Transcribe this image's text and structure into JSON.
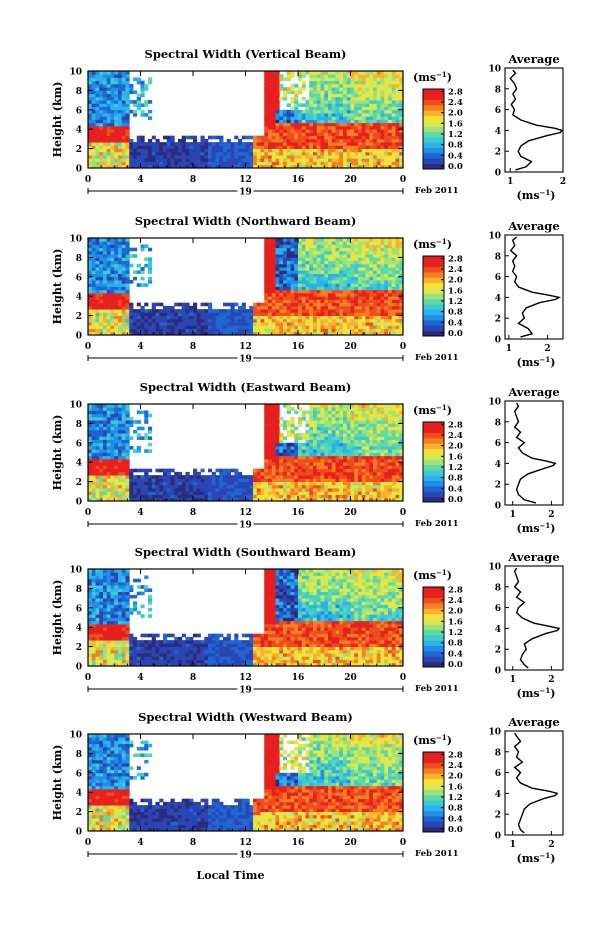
{
  "figure": {
    "xlabel": "Local Time",
    "ylabel": "Height (km)",
    "unit": "(ms",
    "unit_exp": "−1",
    "unit_close": ")",
    "date_day": "19",
    "date_month": "Feb 2011",
    "average_title": "Average"
  },
  "colors": {
    "scale": [
      "#2c2c7c",
      "#2b46b4",
      "#1e66d2",
      "#1f8ee6",
      "#2ab3ea",
      "#3ccbd0",
      "#5fd8a8",
      "#9ee27a",
      "#d6ea4e",
      "#f6e03a",
      "#f9b22c",
      "#f48022",
      "#ec4e1e",
      "#e8201e",
      "#e81e1e"
    ]
  },
  "chart_data": [
    {
      "type": "heatmap",
      "title": "Spectral Width (Vertical Beam)",
      "x": [
        0,
        4,
        8,
        12,
        16,
        20,
        0
      ],
      "x_ticks": [
        "0",
        "4",
        "8",
        "12",
        "16",
        "20",
        "0"
      ],
      "y_ticks": [
        "0",
        "2",
        "4",
        "6",
        "8",
        "10"
      ],
      "ylim": [
        0,
        10
      ],
      "colorbar_ticks": [
        "0.0",
        "0.4",
        "0.8",
        "1.2",
        "1.6",
        "2.0",
        "2.4",
        "2.8"
      ],
      "colorbar_range": [
        0,
        3.0
      ],
      "average_profile": {
        "xlim": [
          0.9,
          2.0
        ],
        "x_ticks": [
          "1",
          "2"
        ],
        "height": [
          0.2,
          0.5,
          1.0,
          1.5,
          2.0,
          2.5,
          3.0,
          3.5,
          3.8,
          4.0,
          4.2,
          4.5,
          5.0,
          5.5,
          6.0,
          6.5,
          7.0,
          7.5,
          8.0,
          8.5,
          9.0,
          9.5,
          9.8
        ],
        "value": [
          1.1,
          1.3,
          1.4,
          1.2,
          1.15,
          1.2,
          1.35,
          1.7,
          1.95,
          1.98,
          1.85,
          1.5,
          1.2,
          1.05,
          1.08,
          1.02,
          1.1,
          1.05,
          1.12,
          1.08,
          1.0,
          1.1,
          1.05
        ]
      }
    },
    {
      "type": "heatmap",
      "title": "Spectral Width (Northward Beam)",
      "x": [
        0,
        4,
        8,
        12,
        16,
        20,
        0
      ],
      "x_ticks": [
        "0",
        "4",
        "8",
        "12",
        "16",
        "20",
        "0"
      ],
      "y_ticks": [
        "0",
        "2",
        "4",
        "6",
        "8",
        "10"
      ],
      "ylim": [
        0,
        10
      ],
      "colorbar_ticks": [
        "0.0",
        "0.4",
        "0.8",
        "1.2",
        "1.6",
        "2.0",
        "2.4",
        "2.8"
      ],
      "colorbar_range": [
        0,
        3.0
      ],
      "average_profile": {
        "xlim": [
          0.9,
          2.4
        ],
        "x_ticks": [
          "1",
          "2"
        ],
        "height": [
          0.2,
          0.5,
          1.0,
          1.5,
          2.0,
          2.5,
          3.0,
          3.5,
          3.8,
          4.0,
          4.2,
          4.5,
          5.0,
          5.5,
          6.0,
          6.5,
          7.0,
          7.5,
          8.0,
          8.5,
          9.0,
          9.5,
          9.8
        ],
        "value": [
          1.3,
          1.6,
          1.5,
          1.25,
          1.4,
          1.35,
          1.45,
          1.8,
          2.2,
          2.3,
          2.05,
          1.6,
          1.25,
          1.15,
          1.2,
          1.1,
          1.15,
          1.1,
          1.2,
          1.05,
          1.15,
          1.1,
          1.2
        ]
      }
    },
    {
      "type": "heatmap",
      "title": "Spectral Width (Eastward Beam)",
      "x": [
        0,
        4,
        8,
        12,
        16,
        20,
        0
      ],
      "x_ticks": [
        "0",
        "4",
        "8",
        "12",
        "16",
        "20",
        "0"
      ],
      "y_ticks": [
        "0",
        "2",
        "4",
        "6",
        "8",
        "10"
      ],
      "ylim": [
        0,
        10
      ],
      "colorbar_ticks": [
        "0.0",
        "0.4",
        "0.8",
        "1.2",
        "1.6",
        "2.0",
        "2.4",
        "2.8"
      ],
      "colorbar_range": [
        0,
        3.0
      ],
      "average_profile": {
        "xlim": [
          0.8,
          2.3
        ],
        "x_ticks": [
          "1",
          "2"
        ],
        "height": [
          0.2,
          0.5,
          1.0,
          1.5,
          2.0,
          2.5,
          3.0,
          3.5,
          3.8,
          4.0,
          4.2,
          4.5,
          5.0,
          5.5,
          6.0,
          6.5,
          7.0,
          7.5,
          8.0,
          8.5,
          9.0,
          9.5,
          9.8
        ],
        "value": [
          1.6,
          1.3,
          1.15,
          1.1,
          1.15,
          1.2,
          1.4,
          1.8,
          2.05,
          2.1,
          1.9,
          1.5,
          1.25,
          1.15,
          1.3,
          1.1,
          1.2,
          1.05,
          1.15,
          1.1,
          1.05,
          1.15,
          1.1
        ]
      }
    },
    {
      "type": "heatmap",
      "title": "Spectral Width (Southward Beam)",
      "x": [
        0,
        4,
        8,
        12,
        16,
        20,
        0
      ],
      "x_ticks": [
        "0",
        "4",
        "8",
        "12",
        "16",
        "20",
        "0"
      ],
      "y_ticks": [
        "0",
        "2",
        "4",
        "6",
        "8",
        "10"
      ],
      "ylim": [
        0,
        10
      ],
      "colorbar_ticks": [
        "0.0",
        "0.4",
        "0.8",
        "1.2",
        "1.6",
        "2.0",
        "2.4",
        "2.8"
      ],
      "colorbar_range": [
        0,
        3.0
      ],
      "average_profile": {
        "xlim": [
          0.8,
          2.3
        ],
        "x_ticks": [
          "1",
          "2"
        ],
        "height": [
          0.2,
          0.5,
          1.0,
          1.5,
          2.0,
          2.5,
          3.0,
          3.5,
          3.8,
          4.0,
          4.2,
          4.5,
          5.0,
          5.5,
          6.0,
          6.5,
          7.0,
          7.5,
          8.0,
          8.5,
          9.0,
          9.5,
          9.8
        ],
        "value": [
          1.4,
          1.3,
          1.2,
          1.25,
          1.35,
          1.3,
          1.5,
          1.85,
          2.15,
          2.2,
          1.95,
          1.55,
          1.25,
          1.1,
          1.15,
          1.3,
          1.1,
          1.2,
          1.05,
          1.15,
          1.1,
          1.05,
          1.1
        ]
      }
    },
    {
      "type": "heatmap",
      "title": "Spectral Width (Westward Beam)",
      "x": [
        0,
        4,
        8,
        12,
        16,
        20,
        0
      ],
      "x_ticks": [
        "0",
        "4",
        "8",
        "12",
        "16",
        "20",
        "0"
      ],
      "y_ticks": [
        "0",
        "2",
        "4",
        "6",
        "8",
        "10"
      ],
      "ylim": [
        0,
        10
      ],
      "colorbar_ticks": [
        "0.0",
        "0.4",
        "0.8",
        "1.2",
        "1.6",
        "2.0",
        "2.4",
        "2.8"
      ],
      "colorbar_range": [
        0,
        3.0
      ],
      "average_profile": {
        "xlim": [
          0.8,
          2.3
        ],
        "x_ticks": [
          "1",
          "2"
        ],
        "height": [
          0.2,
          0.5,
          1.0,
          1.5,
          2.0,
          2.5,
          3.0,
          3.5,
          3.8,
          4.0,
          4.2,
          4.5,
          5.0,
          5.5,
          6.0,
          6.5,
          7.0,
          7.5,
          8.0,
          8.5,
          9.0,
          9.5,
          9.8
        ],
        "value": [
          1.3,
          1.2,
          1.15,
          1.2,
          1.25,
          1.3,
          1.45,
          1.8,
          2.1,
          2.15,
          1.95,
          1.5,
          1.2,
          1.1,
          1.2,
          1.05,
          1.25,
          1.1,
          1.15,
          1.05,
          1.2,
          1.1,
          1.05
        ]
      }
    }
  ]
}
